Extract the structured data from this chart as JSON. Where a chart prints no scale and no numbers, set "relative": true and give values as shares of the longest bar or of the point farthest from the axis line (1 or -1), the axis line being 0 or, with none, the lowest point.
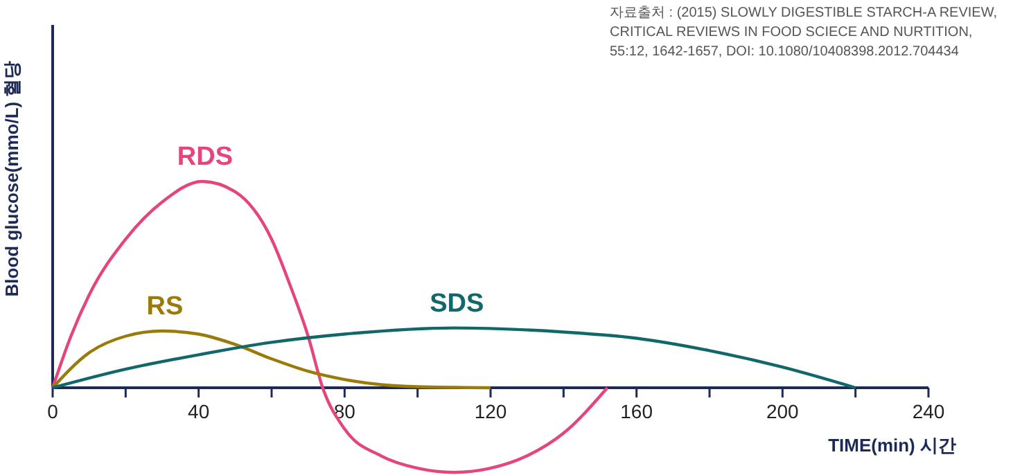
{
  "chart_data": {
    "type": "line",
    "relative": true,
    "ylabel": "Blood glucose(mmo/L) 혈당",
    "xlabel": "TIME(min) 시간",
    "annotations": [
      "자료출처 : (2015) SLOWLY DIGESTIBLE STARCH-A REVIEW, CRITICAL REVIEWS IN FOOD SCIECE AND NURTITION, 55:12, 1642-1657, DOI: 10.1080/10408398.2012.704434"
    ],
    "xlim": [
      0,
      240
    ],
    "xticks": [
      0,
      {
        "value": 20,
        "label": null
      },
      40,
      {
        "value": 60,
        "label": null
      },
      80,
      {
        "value": 100,
        "label": null
      },
      120,
      {
        "value": 140,
        "label": null
      },
      160,
      {
        "value": 180,
        "label": null
      },
      200,
      {
        "value": 220,
        "label": null
      },
      240
    ],
    "grid": false,
    "marker": "none",
    "line_style": "solid",
    "series": [
      {
        "name": "RDS",
        "color": "#e5457a",
        "x": [
          0,
          5,
          10,
          20,
          30,
          41,
          50,
          60,
          65,
          70,
          74,
          80,
          90,
          100,
          110,
          120,
          130,
          140,
          152
        ],
        "values": [
          0,
          0.25,
          0.45,
          0.72,
          0.9,
          1,
          0.95,
          0.72,
          0.5,
          0.25,
          0,
          -0.2,
          -0.33,
          -0.39,
          -0.41,
          -0.39,
          -0.33,
          -0.22,
          0
        ]
      },
      {
        "name": "RS",
        "color": "#9a7b0a",
        "x": [
          0,
          10,
          20,
          30,
          40,
          50,
          60,
          70,
          80,
          90,
          100,
          120
        ],
        "values": [
          0,
          0.17,
          0.25,
          0.275,
          0.26,
          0.21,
          0.14,
          0.08,
          0.04,
          0.015,
          0.005,
          0
        ]
      },
      {
        "name": "SDS",
        "color": "#11676a",
        "x": [
          0,
          20,
          40,
          60,
          80,
          110,
          140,
          160,
          180,
          200,
          220
        ],
        "values": [
          0,
          0.09,
          0.16,
          0.22,
          0.26,
          0.29,
          0.27,
          0.24,
          0.18,
          0.1,
          0
        ]
      }
    ]
  }
}
